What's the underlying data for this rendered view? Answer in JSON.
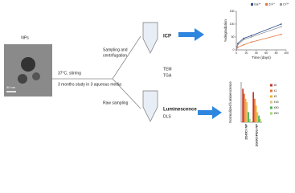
{
  "diagram": {
    "nps": "NPs",
    "scale": "50 nm",
    "cond1": "37°C, stirring",
    "cond2": "3 months study in 3 aqueous media",
    "sampling1": "Sampling and",
    "sampling2": "centrifugation",
    "raw": "Raw sampling",
    "icp": "ICP",
    "tem": "TEM",
    "tga": "TGA",
    "lum": "Luminescence",
    "dls": "DLS"
  },
  "chart_data": [
    {
      "type": "line",
      "xlabel": "Time (days)",
      "ylabel": "%degradation",
      "x": [
        0,
        3,
        15,
        30,
        90
      ],
      "series": [
        {
          "name": "Ga³⁺",
          "color": "#2f4f8f",
          "values": [
            0,
            25,
            45,
            55,
            100
          ]
        },
        {
          "name": "Zn²⁺",
          "color": "#e8743b",
          "values": [
            0,
            10,
            20,
            30,
            60
          ]
        },
        {
          "name": "Cr³⁺",
          "color": "#9a9a9a",
          "values": [
            0,
            20,
            40,
            50,
            90
          ]
        }
      ],
      "xlim": [
        0,
        100
      ],
      "xticks": [
        0,
        20,
        40,
        60,
        80,
        100
      ],
      "ylim": [
        0,
        150
      ],
      "yticks": [
        0,
        50,
        100,
        150
      ]
    },
    {
      "type": "bar",
      "ylabel": "Normalized luminescence",
      "categories": [
        "ZGOCr NP",
        "ZGOCrPEG NP"
      ],
      "series": [
        {
          "name": "t0",
          "color": "#c0392b",
          "values": [
            1,
            0.9
          ]
        },
        {
          "name": "t1",
          "color": "#e8743b",
          "values": [
            0.85,
            0.7
          ]
        },
        {
          "name": "t3",
          "color": "#f0b030",
          "values": [
            0.7,
            0.5
          ]
        },
        {
          "name": "t15",
          "color": "#d9c48a",
          "values": [
            0.6,
            0.3
          ]
        },
        {
          "name": "t30",
          "color": "#4caf50",
          "values": [
            0.3,
            0.2
          ]
        },
        {
          "name": "t90",
          "color": "#a5d66f",
          "values": [
            0.1,
            0.1
          ]
        }
      ],
      "ylim": [
        0,
        1.2
      ]
    }
  ]
}
